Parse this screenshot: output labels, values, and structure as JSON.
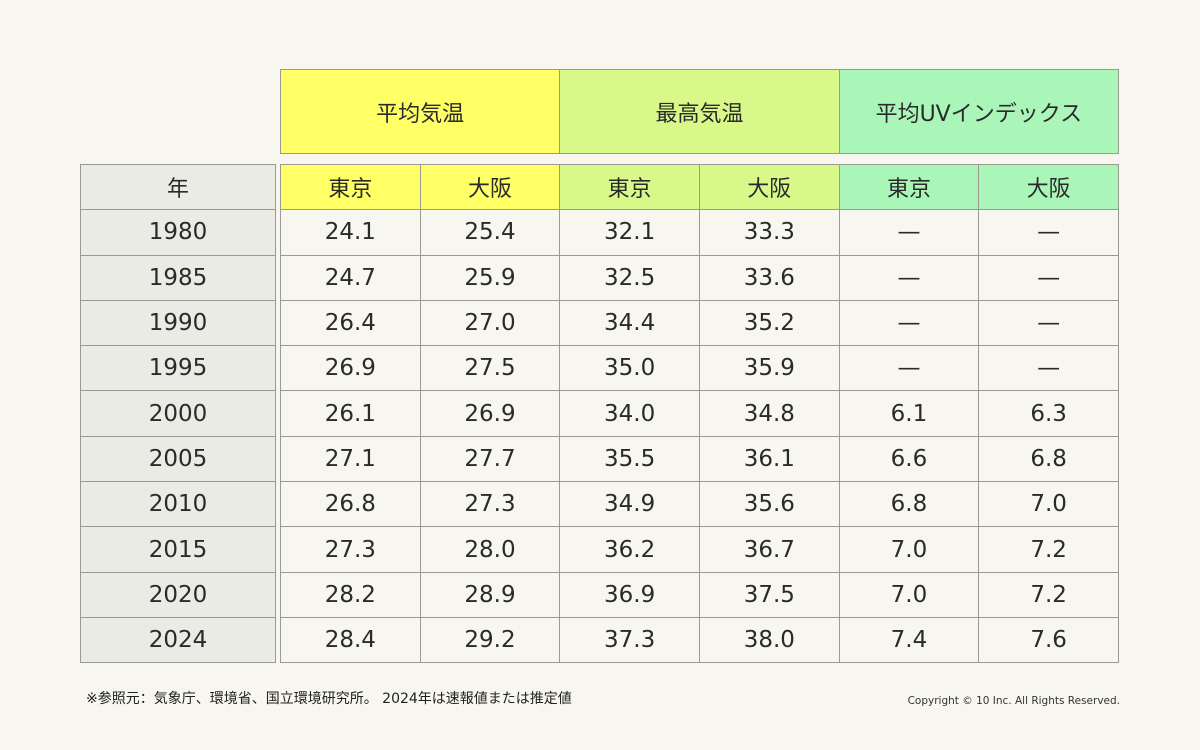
{
  "groups": [
    "平均気温",
    "最高気温",
    "平均UVインデックス"
  ],
  "year_header": "年",
  "cities": [
    "東京",
    "大阪",
    "東京",
    "大阪",
    "東京",
    "大阪"
  ],
  "rows": [
    {
      "year": "1980",
      "v": [
        "24.1",
        "25.4",
        "32.1",
        "33.3",
        "—",
        "—"
      ]
    },
    {
      "year": "1985",
      "v": [
        "24.7",
        "25.9",
        "32.5",
        "33.6",
        "—",
        "—"
      ]
    },
    {
      "year": "1990",
      "v": [
        "26.4",
        "27.0",
        "34.4",
        "35.2",
        "—",
        "—"
      ]
    },
    {
      "year": "1995",
      "v": [
        "26.9",
        "27.5",
        "35.0",
        "35.9",
        "—",
        "—"
      ]
    },
    {
      "year": "2000",
      "v": [
        "26.1",
        "26.9",
        "34.0",
        "34.8",
        "6.1",
        "6.3"
      ]
    },
    {
      "year": "2005",
      "v": [
        "27.1",
        "27.7",
        "35.5",
        "36.1",
        "6.6",
        "6.8"
      ]
    },
    {
      "year": "2010",
      "v": [
        "26.8",
        "27.3",
        "34.9",
        "35.6",
        "6.8",
        "7.0"
      ]
    },
    {
      "year": "2015",
      "v": [
        "27.3",
        "28.0",
        "36.2",
        "36.7",
        "7.0",
        "7.2"
      ]
    },
    {
      "year": "2020",
      "v": [
        "28.2",
        "28.9",
        "36.9",
        "37.5",
        "7.0",
        "7.2"
      ]
    },
    {
      "year": "2024",
      "v": [
        "28.4",
        "29.2",
        "37.3",
        "38.0",
        "7.4",
        "7.6"
      ]
    }
  ],
  "footer": {
    "source": "※参照元：気象庁、環境省、国立環境研究所。 2024年は速報値または推定値",
    "copyright": "Copyright © 10 Inc. All Rights Reserved."
  },
  "colors": {
    "avg_temp": "#ffff66",
    "max_temp": "#d8f98a",
    "uv": "#aaf5b8",
    "year_col": "#ebebe5",
    "background": "#f8f7ef"
  }
}
